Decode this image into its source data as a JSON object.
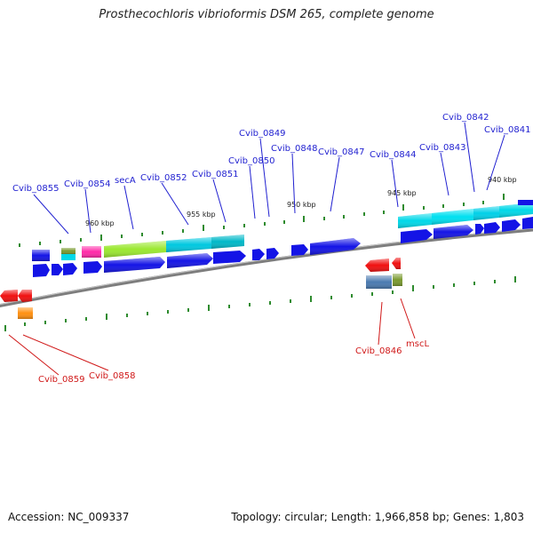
{
  "title": "Prosthecochloris vibrioformis DSM 265, complete genome",
  "accession_label": "Accession: NC_009337",
  "summary": "Topology: circular; Length: 1,966,858 bp; Genes: 1,803",
  "colors": {
    "backbone": "#8c8c8c",
    "tick": "#2e8b2e",
    "label_forward": "#1f1fd0",
    "label_reverse": "#d01818",
    "gene_blue": "#1414e6",
    "gene_cyan": "#00d8e8",
    "gene_green": "#9be830",
    "gene_pink": "#ff2aa8",
    "gene_olive": "#7a9a30",
    "gene_red": "#f01010",
    "gene_orange": "#ff9010",
    "gene_steel": "#4a7ab0"
  },
  "scale_labels": [
    "960 kbp",
    "955 kbp",
    "950 kbp",
    "945 kbp",
    "940 kbp"
  ],
  "forward_gene_labels": [
    "Cvib_0855",
    "Cvib_0854",
    "secA",
    "Cvib_0852",
    "Cvib_0851",
    "Cvib_0850",
    "Cvib_0849",
    "Cvib_0848",
    "Cvib_0847",
    "Cvib_0844",
    "Cvib_0843",
    "Cvib_0842",
    "Cvib_0841"
  ],
  "reverse_gene_labels": [
    "Cvib_0859",
    "Cvib_0858",
    "Cvib_0846",
    "mscL"
  ]
}
